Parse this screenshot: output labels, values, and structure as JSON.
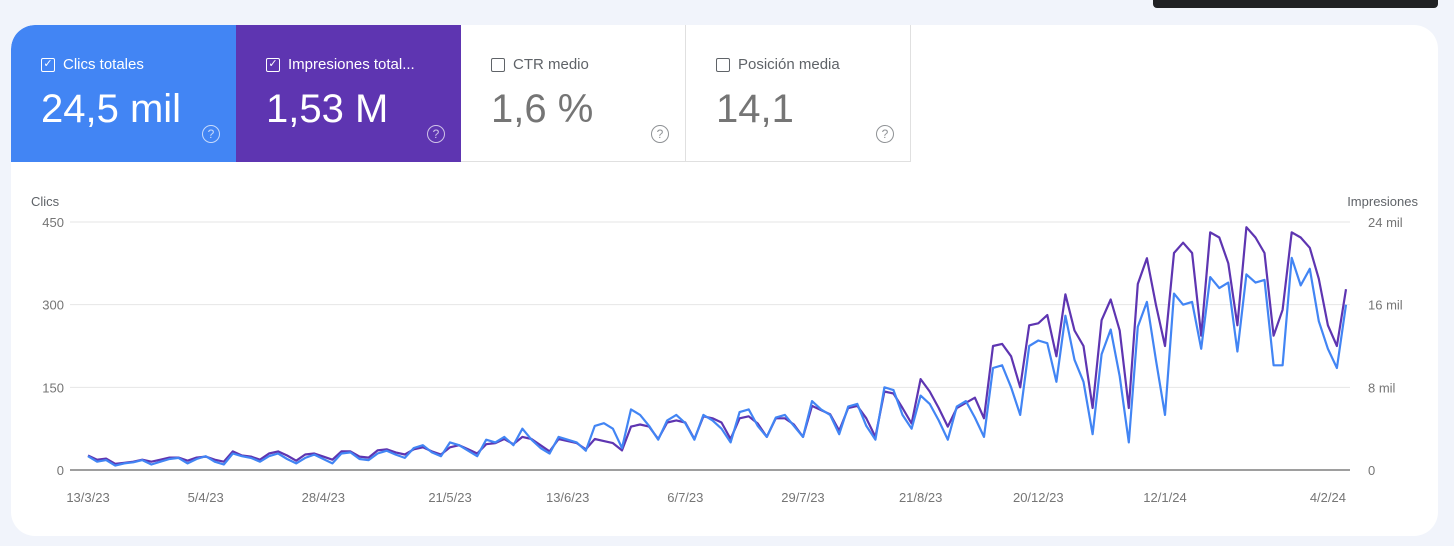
{
  "metrics": [
    {
      "label": "Clics totales",
      "value": "24,5 mil",
      "checked": true,
      "color": "#4285f4"
    },
    {
      "label": "Impresiones total...",
      "value": "1,53 M",
      "checked": true,
      "color": "#5e35b1"
    },
    {
      "label": "CTR medio",
      "value": "1,6 %",
      "checked": false
    },
    {
      "label": "Posición media",
      "value": "14,1",
      "checked": false
    }
  ],
  "chart_data": {
    "type": "line",
    "left_axis": {
      "label": "Clics",
      "ticks": [
        "0",
        "150",
        "300",
        "450"
      ],
      "range": [
        0,
        450
      ]
    },
    "right_axis": {
      "label": "Impresiones",
      "ticks": [
        "0",
        "8 mil",
        "16 mil",
        "24 mil"
      ],
      "range": [
        0,
        24000
      ]
    },
    "x_tick_labels": [
      "13/3/23",
      "5/4/23",
      "28/4/23",
      "21/5/23",
      "13/6/23",
      "6/7/23",
      "29/7/23",
      "21/8/23",
      "20/12/23",
      "12/1/24",
      "4/2/24"
    ],
    "x_tick_index": [
      0,
      13,
      26,
      40,
      53,
      66,
      79,
      92,
      105,
      119,
      137
    ],
    "grid": true,
    "series": [
      {
        "name": "Clics",
        "axis": "left",
        "color": "#4285f4",
        "values": [
          25,
          15,
          18,
          8,
          12,
          14,
          18,
          10,
          15,
          20,
          22,
          12,
          20,
          25,
          15,
          10,
          30,
          25,
          22,
          15,
          25,
          30,
          20,
          12,
          22,
          28,
          20,
          12,
          30,
          32,
          20,
          18,
          30,
          35,
          28,
          22,
          40,
          45,
          32,
          25,
          50,
          45,
          35,
          25,
          55,
          50,
          60,
          45,
          75,
          55,
          40,
          30,
          60,
          55,
          50,
          35,
          80,
          85,
          75,
          40,
          110,
          100,
          80,
          55,
          90,
          100,
          85,
          55,
          100,
          90,
          75,
          50,
          105,
          110,
          80,
          60,
          95,
          100,
          80,
          60,
          125,
          110,
          100,
          65,
          115,
          120,
          80,
          55,
          150,
          145,
          100,
          75,
          135,
          120,
          90,
          55,
          115,
          125,
          95,
          60,
          185,
          190,
          150,
          100,
          225,
          235,
          230,
          160,
          280,
          200,
          160,
          65,
          210,
          255,
          170,
          50,
          260,
          305,
          200,
          100,
          320,
          300,
          305,
          220,
          350,
          330,
          340,
          215,
          355,
          340,
          345,
          190,
          190,
          385,
          335,
          365,
          270,
          220,
          185,
          300
        ]
      },
      {
        "name": "Impresiones",
        "axis": "right",
        "color": "#5e35b1",
        "values": [
          1400,
          1000,
          1100,
          600,
          700,
          800,
          1000,
          800,
          1000,
          1200,
          1200,
          900,
          1200,
          1300,
          1000,
          800,
          1800,
          1400,
          1300,
          1000,
          1600,
          1800,
          1400,
          900,
          1500,
          1600,
          1300,
          1000,
          1800,
          1800,
          1300,
          1200,
          1900,
          2000,
          1700,
          1500,
          2000,
          2200,
          1800,
          1500,
          2200,
          2400,
          2000,
          1600,
          2500,
          2600,
          3000,
          2500,
          3200,
          3000,
          2400,
          1800,
          3000,
          2800,
          2600,
          2000,
          3000,
          2800,
          2600,
          1900,
          4200,
          4400,
          4200,
          3000,
          4600,
          4800,
          4600,
          3000,
          5200,
          5000,
          4600,
          3000,
          5000,
          5200,
          4500,
          3200,
          5000,
          5000,
          4400,
          3200,
          6200,
          5800,
          5400,
          3800,
          6000,
          6200,
          5000,
          3200,
          7600,
          7400,
          6000,
          4500,
          8800,
          7600,
          6000,
          4200,
          6000,
          6500,
          7000,
          5000,
          12000,
          12200,
          11000,
          8000,
          14000,
          14200,
          15000,
          11000,
          17000,
          13500,
          12000,
          6000,
          14500,
          16500,
          13500,
          6000,
          18000,
          20500,
          16000,
          12000,
          21000,
          22000,
          21000,
          13000,
          23000,
          22500,
          20000,
          14000,
          23500,
          22500,
          21000,
          13000,
          15500,
          23000,
          22500,
          21500,
          18500,
          14000,
          12000,
          17500
        ]
      }
    ]
  }
}
